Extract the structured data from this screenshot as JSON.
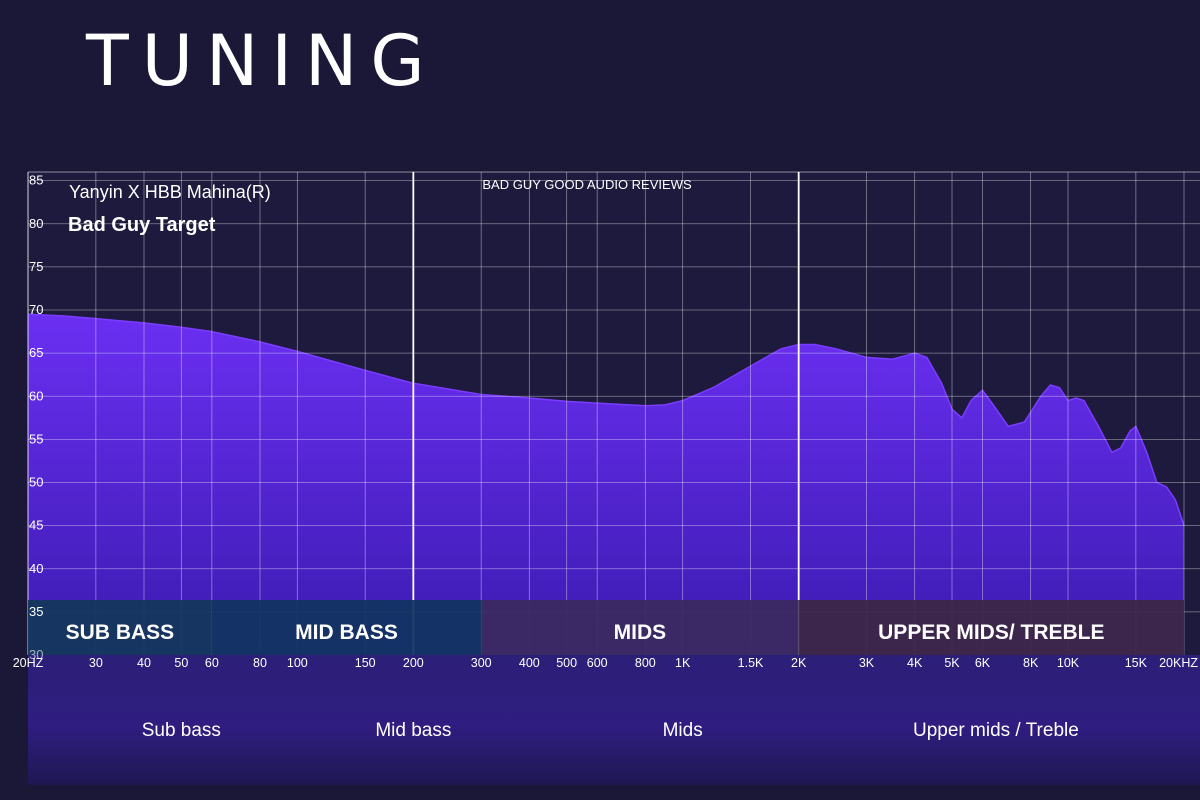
{
  "page": {
    "title": "TUNING"
  },
  "chart_data": {
    "type": "area",
    "title": "BAD GUY GOOD AUDIO REVIEWS",
    "legend": [
      "Yanyin X HBB Mahina(R)",
      "Bad Guy Target"
    ],
    "x_scale": "log",
    "xlim": [
      20,
      20000
    ],
    "ylim": [
      30,
      86
    ],
    "grid": true,
    "x_ticks": [
      {
        "v": 20,
        "label": "20HZ"
      },
      {
        "v": 30,
        "label": "30"
      },
      {
        "v": 40,
        "label": "40"
      },
      {
        "v": 50,
        "label": "50"
      },
      {
        "v": 60,
        "label": "60"
      },
      {
        "v": 80,
        "label": "80"
      },
      {
        "v": 100,
        "label": "100"
      },
      {
        "v": 150,
        "label": "150"
      },
      {
        "v": 200,
        "label": "200"
      },
      {
        "v": 300,
        "label": "300"
      },
      {
        "v": 400,
        "label": "400"
      },
      {
        "v": 500,
        "label": "500"
      },
      {
        "v": 600,
        "label": "600"
      },
      {
        "v": 800,
        "label": "800"
      },
      {
        "v": 1000,
        "label": "1K"
      },
      {
        "v": 1500,
        "label": "1.5K"
      },
      {
        "v": 2000,
        "label": "2K"
      },
      {
        "v": 3000,
        "label": "3K"
      },
      {
        "v": 4000,
        "label": "4K"
      },
      {
        "v": 5000,
        "label": "5K"
      },
      {
        "v": 6000,
        "label": "6K"
      },
      {
        "v": 8000,
        "label": "8K"
      },
      {
        "v": 10000,
        "label": "10K"
      },
      {
        "v": 15000,
        "label": "15K"
      },
      {
        "v": 20000,
        "label": "20KHZ"
      }
    ],
    "y_ticks": [
      30,
      35,
      40,
      45,
      50,
      55,
      60,
      65,
      70,
      75,
      80,
      85
    ],
    "dividers": [
      200,
      2000
    ],
    "series": [
      {
        "name": "Yanyin X HBB Mahina(R)",
        "color": "#6a2ef0",
        "points": [
          [
            20,
            69.5
          ],
          [
            25,
            69.3
          ],
          [
            30,
            69.0
          ],
          [
            40,
            68.5
          ],
          [
            50,
            68.0
          ],
          [
            60,
            67.5
          ],
          [
            80,
            66.3
          ],
          [
            100,
            65.2
          ],
          [
            150,
            63.0
          ],
          [
            200,
            61.5
          ],
          [
            300,
            60.2
          ],
          [
            400,
            59.8
          ],
          [
            500,
            59.4
          ],
          [
            600,
            59.2
          ],
          [
            800,
            58.9
          ],
          [
            900,
            59.0
          ],
          [
            1000,
            59.5
          ],
          [
            1200,
            61.0
          ],
          [
            1500,
            63.5
          ],
          [
            1800,
            65.5
          ],
          [
            2000,
            66.0
          ],
          [
            2200,
            66.0
          ],
          [
            2500,
            65.5
          ],
          [
            3000,
            64.5
          ],
          [
            3500,
            64.3
          ],
          [
            4000,
            65.0
          ],
          [
            4300,
            64.5
          ],
          [
            4700,
            61.5
          ],
          [
            5000,
            58.5
          ],
          [
            5300,
            57.5
          ],
          [
            5600,
            59.5
          ],
          [
            6000,
            60.7
          ],
          [
            6400,
            59.0
          ],
          [
            7000,
            56.5
          ],
          [
            7700,
            57.0
          ],
          [
            8500,
            60.0
          ],
          [
            9000,
            61.3
          ],
          [
            9500,
            61.0
          ],
          [
            10000,
            59.5
          ],
          [
            10500,
            59.8
          ],
          [
            11000,
            59.5
          ],
          [
            12000,
            56.5
          ],
          [
            13000,
            53.5
          ],
          [
            13700,
            54.0
          ],
          [
            14500,
            56.0
          ],
          [
            15000,
            56.5
          ],
          [
            16000,
            53.5
          ],
          [
            17000,
            50.0
          ],
          [
            18000,
            49.5
          ],
          [
            19000,
            48.0
          ],
          [
            20000,
            45.0
          ]
        ]
      }
    ],
    "regions": [
      {
        "label": "SUB  BASS",
        "from": 20,
        "to": 60,
        "color": "#14375a"
      },
      {
        "label": "MID  BASS",
        "from": 60,
        "to": 300,
        "color": "#123460"
      },
      {
        "label": "MIDS",
        "from": 300,
        "to": 2000,
        "color": "#3a2a5e"
      },
      {
        "label": "UPPER MIDS/ TREBLE",
        "from": 2000,
        "to": 20000,
        "color": "#3d2744"
      }
    ],
    "bands": [
      {
        "label": "Sub bass",
        "center": 50
      },
      {
        "label": "Mid bass",
        "center": 200
      },
      {
        "label": "Mids",
        "center": 1000
      },
      {
        "label": "Upper mids / Treble",
        "center": 6500
      }
    ]
  }
}
